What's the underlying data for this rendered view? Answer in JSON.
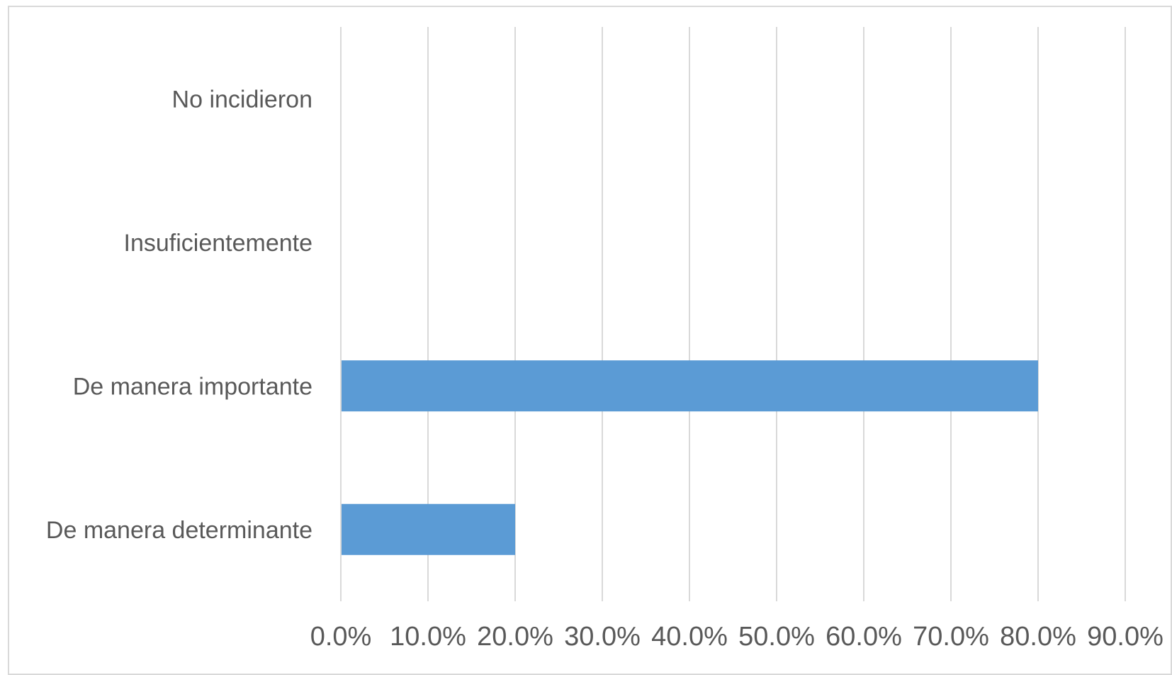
{
  "chart_data": {
    "type": "bar",
    "orientation": "horizontal",
    "categories": [
      "No incidieron",
      "Insuficientemente",
      "De manera importante",
      "De manera determinante"
    ],
    "values": [
      0.0,
      0.0,
      80.0,
      20.0
    ],
    "xlim": [
      0,
      90
    ],
    "x_ticks": [
      0,
      10,
      20,
      30,
      40,
      50,
      60,
      70,
      80,
      90
    ],
    "x_tick_labels": [
      "0.0%",
      "10.0%",
      "20.0%",
      "30.0%",
      "40.0%",
      "50.0%",
      "60.0%",
      "70.0%",
      "80.0%",
      "90.0%"
    ],
    "grid": "vertical",
    "legend": "none",
    "bar_color": "#5b9bd5",
    "grid_color": "#d9d9d9",
    "text_color": "#595959"
  }
}
